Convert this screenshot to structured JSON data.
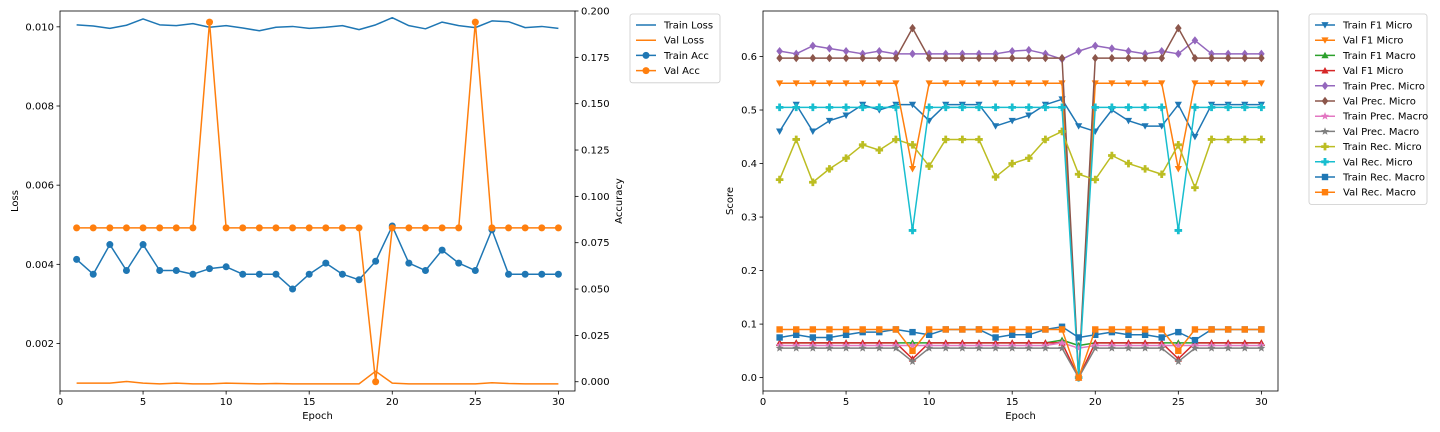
{
  "chart_data": [
    {
      "type": "line",
      "xlabel": "Epoch",
      "ylabel": "Loss",
      "y2label": "Accuracy",
      "xlim": [
        0,
        31
      ],
      "ylim": [
        0.0008,
        0.0104
      ],
      "y2lim": [
        -0.005,
        0.2
      ],
      "xticks": [
        "0",
        "5",
        "10",
        "15",
        "20",
        "25",
        "30"
      ],
      "yticks": [
        "0.002",
        "0.004",
        "0.006",
        "0.008",
        "0.010"
      ],
      "y2ticks": [
        "0.000",
        "0.025",
        "0.050",
        "0.075",
        "0.100",
        "0.125",
        "0.150",
        "0.175",
        "0.200"
      ],
      "x": [
        1,
        2,
        3,
        4,
        5,
        6,
        7,
        8,
        9,
        10,
        11,
        12,
        13,
        14,
        15,
        16,
        17,
        18,
        19,
        20,
        21,
        22,
        23,
        24,
        25,
        26,
        27,
        28,
        29,
        30
      ],
      "legend_position": "outside-right",
      "series": [
        {
          "name": "Train Loss",
          "axis": "left",
          "marker": "none",
          "color": "#1f77b4",
          "values": [
            0.01005,
            0.01002,
            0.00996,
            0.01004,
            0.0102,
            0.01005,
            0.01003,
            0.01008,
            0.00999,
            0.01003,
            0.00997,
            0.0099,
            0.00999,
            0.01001,
            0.00996,
            0.00999,
            0.01003,
            0.00993,
            0.01005,
            0.01023,
            0.01003,
            0.00995,
            0.01012,
            0.01003,
            0.00998,
            0.01015,
            0.01013,
            0.00998,
            0.01001,
            0.00996
          ]
        },
        {
          "name": "Val Loss",
          "axis": "left",
          "marker": "none",
          "color": "#ff7f0e",
          "values": [
            0.001,
            0.001,
            0.001,
            0.00104,
            0.001,
            0.00098,
            0.001,
            0.00098,
            0.00098,
            0.001,
            0.00099,
            0.00098,
            0.00099,
            0.00098,
            0.00098,
            0.00098,
            0.00098,
            0.00098,
            0.0013,
            0.001,
            0.00098,
            0.00098,
            0.00098,
            0.00098,
            0.00098,
            0.00101,
            0.00099,
            0.00098,
            0.00098,
            0.00098
          ]
        },
        {
          "name": "Train Acc",
          "axis": "right",
          "marker": "circle",
          "color": "#1f77b4",
          "values": [
            0.066,
            0.058,
            0.074,
            0.06,
            0.074,
            0.06,
            0.06,
            0.058,
            0.061,
            0.062,
            0.058,
            0.058,
            0.058,
            0.05,
            0.058,
            0.064,
            0.058,
            0.055,
            0.065,
            0.084,
            0.064,
            0.06,
            0.071,
            0.064,
            0.06,
            0.082,
            0.058,
            0.058,
            0.058,
            0.058
          ]
        },
        {
          "name": "Val Acc",
          "axis": "right",
          "marker": "circle",
          "color": "#ff7f0e",
          "values": [
            0.083,
            0.083,
            0.083,
            0.083,
            0.083,
            0.083,
            0.083,
            0.083,
            0.194,
            0.083,
            0.083,
            0.083,
            0.083,
            0.083,
            0.083,
            0.083,
            0.083,
            0.083,
            0.0,
            0.083,
            0.083,
            0.083,
            0.083,
            0.083,
            0.194,
            0.083,
            0.083,
            0.083,
            0.083,
            0.083
          ]
        }
      ]
    },
    {
      "type": "line",
      "xlabel": "Epoch",
      "ylabel": "Score",
      "xlim": [
        0,
        31
      ],
      "ylim": [
        -0.025,
        0.685
      ],
      "xticks": [
        "0",
        "5",
        "10",
        "15",
        "20",
        "25",
        "30"
      ],
      "yticks": [
        "0.0",
        "0.1",
        "0.2",
        "0.3",
        "0.4",
        "0.5",
        "0.6"
      ],
      "x": [
        1,
        2,
        3,
        4,
        5,
        6,
        7,
        8,
        9,
        10,
        11,
        12,
        13,
        14,
        15,
        16,
        17,
        18,
        19,
        20,
        21,
        22,
        23,
        24,
        25,
        26,
        27,
        28,
        29,
        30
      ],
      "legend_position": "outside-right",
      "series": [
        {
          "name": "Train F1 Micro",
          "marker": "tri-down",
          "color": "#1f77b4",
          "values": [
            0.46,
            0.51,
            0.46,
            0.48,
            0.49,
            0.51,
            0.5,
            0.51,
            0.51,
            0.48,
            0.51,
            0.51,
            0.51,
            0.47,
            0.48,
            0.49,
            0.51,
            0.52,
            0.47,
            0.46,
            0.5,
            0.48,
            0.47,
            0.47,
            0.51,
            0.45,
            0.51,
            0.51,
            0.51,
            0.51
          ]
        },
        {
          "name": "Val F1 Micro",
          "marker": "tri-down",
          "color": "#ff7f0e",
          "values": [
            0.55,
            0.55,
            0.55,
            0.55,
            0.55,
            0.55,
            0.55,
            0.55,
            0.39,
            0.55,
            0.55,
            0.55,
            0.55,
            0.55,
            0.55,
            0.55,
            0.55,
            0.55,
            0.0,
            0.55,
            0.55,
            0.55,
            0.55,
            0.55,
            0.39,
            0.55,
            0.55,
            0.55,
            0.55,
            0.55
          ]
        },
        {
          "name": "Train F1 Macro",
          "marker": "tri-up",
          "color": "#2ca02c",
          "values": [
            0.065,
            0.065,
            0.065,
            0.065,
            0.065,
            0.065,
            0.065,
            0.065,
            0.065,
            0.065,
            0.065,
            0.065,
            0.065,
            0.065,
            0.065,
            0.065,
            0.065,
            0.07,
            0.06,
            0.065,
            0.065,
            0.065,
            0.065,
            0.065,
            0.065,
            0.065,
            0.065,
            0.065,
            0.065,
            0.065
          ]
        },
        {
          "name": "Val F1 Micro",
          "marker": "tri-up",
          "color": "#d62728",
          "values": [
            0.065,
            0.065,
            0.065,
            0.065,
            0.065,
            0.065,
            0.065,
            0.065,
            0.035,
            0.065,
            0.065,
            0.065,
            0.065,
            0.065,
            0.065,
            0.065,
            0.065,
            0.065,
            0.0,
            0.065,
            0.065,
            0.065,
            0.065,
            0.065,
            0.035,
            0.065,
            0.065,
            0.065,
            0.065,
            0.065
          ]
        },
        {
          "name": "Train Prec. Micro",
          "marker": "diamond",
          "color": "#9467bd",
          "values": [
            0.61,
            0.605,
            0.62,
            0.615,
            0.61,
            0.605,
            0.61,
            0.605,
            0.605,
            0.605,
            0.605,
            0.605,
            0.605,
            0.605,
            0.61,
            0.612,
            0.605,
            0.595,
            0.61,
            0.62,
            0.615,
            0.61,
            0.605,
            0.61,
            0.605,
            0.63,
            0.605,
            0.605,
            0.605,
            0.605
          ]
        },
        {
          "name": "Val Prec. Micro",
          "marker": "diamond",
          "color": "#8c564b",
          "values": [
            0.597,
            0.597,
            0.597,
            0.597,
            0.597,
            0.597,
            0.597,
            0.597,
            0.653,
            0.597,
            0.597,
            0.597,
            0.597,
            0.597,
            0.597,
            0.597,
            0.597,
            0.597,
            0.0,
            0.597,
            0.597,
            0.597,
            0.597,
            0.597,
            0.653,
            0.597,
            0.597,
            0.597,
            0.597,
            0.597
          ]
        },
        {
          "name": "Train Prec. Macro",
          "marker": "star",
          "color": "#e377c2",
          "values": [
            0.06,
            0.06,
            0.06,
            0.06,
            0.06,
            0.06,
            0.06,
            0.06,
            0.06,
            0.06,
            0.06,
            0.06,
            0.06,
            0.06,
            0.06,
            0.06,
            0.06,
            0.065,
            0.055,
            0.06,
            0.06,
            0.06,
            0.06,
            0.06,
            0.06,
            0.06,
            0.06,
            0.06,
            0.06,
            0.06
          ]
        },
        {
          "name": "Val Prec. Macro",
          "marker": "star",
          "color": "#7f7f7f",
          "values": [
            0.055,
            0.055,
            0.055,
            0.055,
            0.055,
            0.055,
            0.055,
            0.055,
            0.03,
            0.055,
            0.055,
            0.055,
            0.055,
            0.055,
            0.055,
            0.055,
            0.055,
            0.055,
            0.0,
            0.055,
            0.055,
            0.055,
            0.055,
            0.055,
            0.03,
            0.055,
            0.055,
            0.055,
            0.055,
            0.055
          ]
        },
        {
          "name": "Train Rec. Micro",
          "marker": "plus",
          "color": "#bcbd22",
          "values": [
            0.37,
            0.445,
            0.365,
            0.39,
            0.41,
            0.435,
            0.425,
            0.445,
            0.435,
            0.395,
            0.445,
            0.445,
            0.445,
            0.375,
            0.4,
            0.41,
            0.445,
            0.46,
            0.38,
            0.37,
            0.415,
            0.4,
            0.39,
            0.38,
            0.435,
            0.355,
            0.445,
            0.445,
            0.445,
            0.445
          ]
        },
        {
          "name": "Val Rec. Micro",
          "marker": "plus",
          "color": "#17becf",
          "values": [
            0.505,
            0.505,
            0.505,
            0.505,
            0.505,
            0.505,
            0.505,
            0.505,
            0.275,
            0.505,
            0.505,
            0.505,
            0.505,
            0.505,
            0.505,
            0.505,
            0.505,
            0.505,
            0.0,
            0.505,
            0.505,
            0.505,
            0.505,
            0.505,
            0.275,
            0.505,
            0.505,
            0.505,
            0.505,
            0.505
          ]
        },
        {
          "name": "Train Rec. Macro",
          "marker": "square",
          "color": "#1f77b4",
          "values": [
            0.075,
            0.08,
            0.075,
            0.075,
            0.08,
            0.085,
            0.085,
            0.09,
            0.085,
            0.08,
            0.09,
            0.09,
            0.09,
            0.075,
            0.08,
            0.08,
            0.09,
            0.095,
            0.075,
            0.08,
            0.085,
            0.08,
            0.08,
            0.075,
            0.085,
            0.07,
            0.09,
            0.09,
            0.09,
            0.09
          ]
        },
        {
          "name": "Val Rec. Macro",
          "marker": "square",
          "color": "#ff7f0e",
          "values": [
            0.09,
            0.09,
            0.09,
            0.09,
            0.09,
            0.09,
            0.09,
            0.09,
            0.05,
            0.09,
            0.09,
            0.09,
            0.09,
            0.09,
            0.09,
            0.09,
            0.09,
            0.09,
            0.0,
            0.09,
            0.09,
            0.09,
            0.09,
            0.09,
            0.05,
            0.09,
            0.09,
            0.09,
            0.09,
            0.09
          ]
        }
      ]
    }
  ]
}
